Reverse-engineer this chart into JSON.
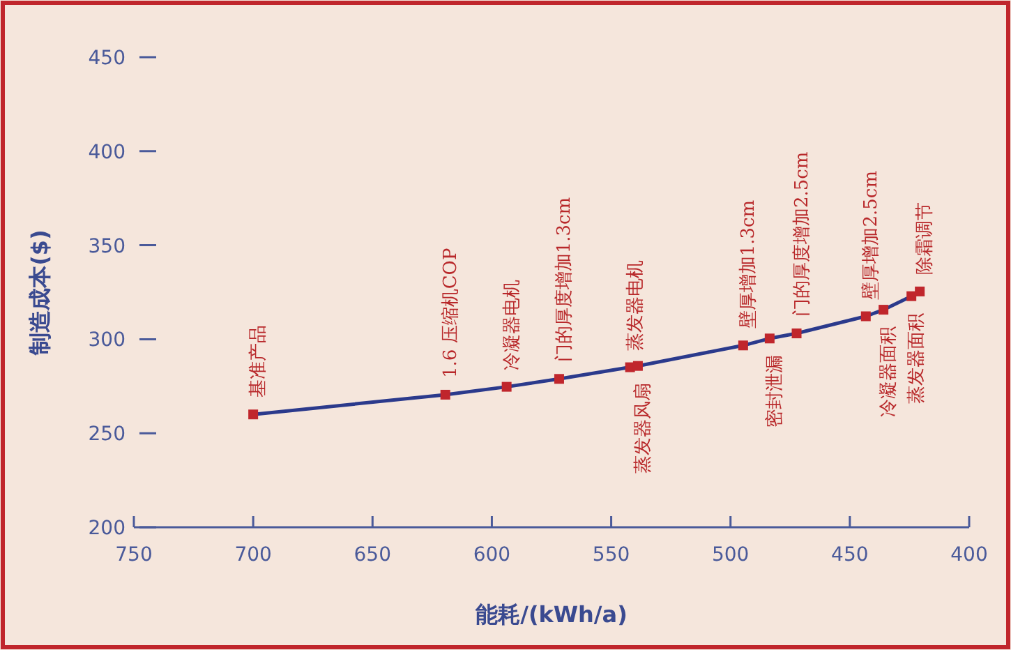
{
  "chart_data": {
    "type": "line",
    "xlabel": "能耗/(kWh/a)",
    "ylabel": "制造成本($)",
    "x": [
      700,
      619.5,
      593.8,
      571.8,
      542.1,
      538.8,
      494.7,
      483.6,
      472.3,
      443.3,
      435.9,
      424.2,
      420.7
    ],
    "values": [
      260,
      270.5,
      274.7,
      278.9,
      285.1,
      285.8,
      296.7,
      300.4,
      303.1,
      312.2,
      315.7,
      322.9,
      325.4
    ],
    "color": "#2b3a8c",
    "colors": [
      "#c0262c",
      "#c0262c",
      "#c0262c",
      "#c0262c",
      "#c0262c",
      "#c0262c",
      "#c0262c",
      "#c0262c",
      "#c0262c",
      "#c0262c",
      "#c0262c",
      "#c0262c",
      "#c0262c"
    ],
    "marker": "square",
    "line_style": "solid",
    "xlim": [
      750,
      400
    ],
    "xticks": [
      750,
      700,
      650,
      600,
      550,
      500,
      450,
      400
    ],
    "ylim": [
      200,
      450
    ],
    "yticks": [
      200,
      250,
      300,
      350,
      400,
      450
    ],
    "grid": false,
    "annotations": [
      {
        "text": "基准产品",
        "x": 700,
        "y": 260
      },
      {
        "text": "1.6 压缩机COP",
        "x": 619.5,
        "y": 270.5
      },
      {
        "text": "冷凝器电机",
        "x": 593.8,
        "y": 274.7
      },
      {
        "text": "门的厚度增加1.3cm",
        "x": 571.8,
        "y": 278.9
      },
      {
        "text": "蒸发器电机",
        "x": 542.1,
        "y": 285.1
      },
      {
        "text": "蒸发器风扇",
        "x": 538.8,
        "y": 285.8
      },
      {
        "text": "壁厚增加1.3cm",
        "x": 494.7,
        "y": 296.7
      },
      {
        "text": "密封泄漏",
        "x": 483.6,
        "y": 300.4
      },
      {
        "text": "门的厚度增加2.5cm",
        "x": 472.3,
        "y": 303.1
      },
      {
        "text": "壁厚增加2.5cm",
        "x": 443.3,
        "y": 312.2
      },
      {
        "text": "冷凝器面积",
        "x": 435.9,
        "y": 315.7
      },
      {
        "text": "蒸发器面积",
        "x": 424.2,
        "y": 322.9
      },
      {
        "text": "除霜调节",
        "x": 420.7,
        "y": 325.4
      }
    ]
  }
}
